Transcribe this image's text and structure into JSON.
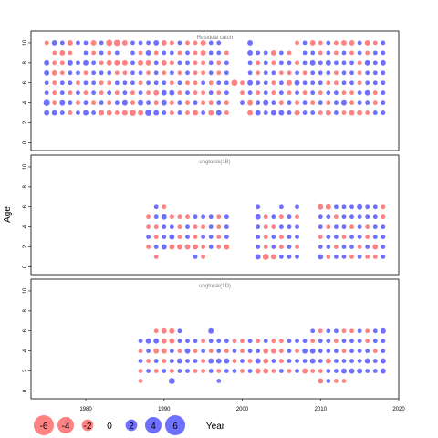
{
  "chart_data": {
    "type": "scatter",
    "subtype": "bubble-residuals",
    "xlabel": "Year",
    "ylabel": "Age",
    "xlim": [
      1973,
      2020
    ],
    "x_ticks": [
      1980,
      1990,
      2000,
      2010,
      2020
    ],
    "colors": {
      "positive": "#3333ff",
      "negative": "#ff4d4d",
      "frame": "#000000",
      "title": "#808080"
    },
    "legend": {
      "placement": "bottom-left",
      "values": [
        -6,
        -4,
        -2,
        0,
        2,
        4,
        6
      ],
      "labels": [
        "-6",
        "-4",
        "-2",
        "0",
        "2",
        "4",
        "6"
      ]
    },
    "panels": [
      {
        "title": "Residual catch",
        "ylim": [
          -0.6,
          11
        ],
        "y_ticks": [
          0,
          2,
          4,
          6,
          8,
          10
        ],
        "y_tick_labels": [
          "0",
          "2",
          "4",
          "6",
          "8",
          "10"
        ],
        "ages": [
          3,
          4,
          5,
          6,
          7,
          8,
          9,
          10
        ],
        "years": [
          1975,
          1976,
          1977,
          1978,
          1979,
          1980,
          1981,
          1982,
          1983,
          1984,
          1985,
          1986,
          1987,
          1988,
          1989,
          1990,
          1991,
          1992,
          1993,
          1994,
          1995,
          1996,
          1997,
          1998,
          1999,
          2000,
          2001,
          2002,
          2003,
          2004,
          2005,
          2006,
          2007,
          2008,
          2009,
          2010,
          2011,
          2012,
          2013,
          2014,
          2015,
          2016,
          2017,
          2018
        ],
        "residuals": [
          [
            3,
            3,
            2,
            -2,
            2,
            3,
            2,
            -3,
            -3,
            -2,
            -3,
            -4,
            -3,
            4,
            3,
            2,
            -2,
            2,
            -2,
            -3,
            2,
            -3,
            3,
            -2,
            0,
            0,
            -3,
            3,
            2,
            3,
            3,
            2,
            -3,
            2,
            2,
            -2,
            -3,
            2,
            -2,
            -3,
            -3,
            -2,
            2,
            2
          ],
          [
            4,
            -2,
            3,
            2,
            -2,
            2,
            -2,
            2,
            -2,
            2,
            3,
            -2,
            3,
            2,
            -2,
            3,
            -2,
            2,
            -2,
            2,
            -2,
            -2,
            2,
            -2,
            0,
            2,
            -3,
            2,
            3,
            2,
            -2,
            2,
            -2,
            2,
            -2,
            2,
            -2,
            2,
            3,
            -2,
            2,
            2,
            -2,
            2
          ],
          [
            2,
            -2,
            2,
            -2,
            2,
            -2,
            2,
            -2,
            2,
            -2,
            2,
            -2,
            2,
            -2,
            -3,
            3,
            3,
            -2,
            2,
            -2,
            -2,
            2,
            -2,
            2,
            0,
            -2,
            2,
            -2,
            2,
            -2,
            2,
            -2,
            2,
            -2,
            2,
            -2,
            2,
            2,
            -2,
            -2,
            2,
            3,
            -2,
            2
          ],
          [
            2,
            -2,
            2,
            2,
            -2,
            2,
            2,
            -2,
            -2,
            2,
            2,
            2,
            -2,
            2,
            2,
            2,
            -2,
            2,
            -2,
            -2,
            2,
            -2,
            2,
            2,
            -4,
            -2,
            3,
            2,
            2,
            -2,
            2,
            -3,
            3,
            2,
            2,
            2,
            -2,
            -2,
            2,
            2,
            -2,
            2,
            2,
            2
          ],
          [
            3,
            -3,
            -2,
            2,
            2,
            -2,
            2,
            2,
            2,
            -2,
            -2,
            2,
            2,
            -2,
            2,
            -2,
            2,
            -2,
            2,
            -2,
            -2,
            2,
            -2,
            2,
            0,
            0,
            2,
            -2,
            2,
            2,
            -2,
            -2,
            2,
            -2,
            2,
            2,
            2,
            -2,
            2,
            2,
            -2,
            2,
            2,
            2
          ],
          [
            3,
            -2,
            -2,
            3,
            2,
            3,
            2,
            -2,
            -3,
            -3,
            -3,
            2,
            -3,
            -3,
            2,
            -3,
            -2,
            2,
            2,
            -2,
            -2,
            2,
            -2,
            2,
            0,
            0,
            2,
            -2,
            2,
            -2,
            2,
            2,
            -2,
            2,
            3,
            2,
            3,
            2,
            2,
            2,
            -2,
            3,
            2,
            3
          ],
          [
            0,
            -2,
            -3,
            -2,
            0,
            2,
            -2,
            2,
            -2,
            2,
            0,
            2,
            -2,
            3,
            -2,
            2,
            2,
            -2,
            2,
            -2,
            -3,
            2,
            2,
            -2,
            0,
            0,
            3,
            2,
            2,
            -3,
            2,
            -2,
            0,
            2,
            2,
            -2,
            2,
            -2,
            2,
            -2,
            2,
            -2,
            2,
            2
          ],
          [
            -2,
            3,
            2,
            -3,
            2,
            2,
            -3,
            2,
            -4,
            -4,
            -3,
            2,
            2,
            2,
            3,
            -3,
            -2,
            2,
            -2,
            -2,
            -3,
            2,
            2,
            0,
            0,
            0,
            3,
            0,
            0,
            0,
            0,
            0,
            -2,
            2,
            -3,
            -2,
            2,
            -2,
            -3,
            -3,
            2,
            -3,
            -2,
            2
          ]
        ]
      },
      {
        "title": "ungtorsk(1B)",
        "ylim": [
          -0.6,
          11
        ],
        "y_ticks": [
          0,
          2,
          4,
          6,
          8,
          10
        ],
        "y_tick_labels": [
          "0",
          "2",
          "4",
          "6",
          "8",
          "10"
        ],
        "ages": [
          1,
          2,
          3,
          4,
          5,
          6
        ],
        "years": [
          1988,
          1989,
          1990,
          1991,
          1992,
          1993,
          1994,
          1995,
          1996,
          1997,
          1998,
          2002,
          2003,
          2004,
          2005,
          2006,
          2007,
          2010,
          2011,
          2012,
          2013,
          2014,
          2015,
          2016,
          2017,
          2018
        ],
        "residuals": [
          [
            0,
            -2,
            0,
            0,
            0,
            0,
            2,
            -2,
            0,
            0,
            0,
            3,
            -4,
            -3,
            2,
            2,
            2,
            3,
            -2,
            2,
            2,
            -2,
            2,
            -2,
            -2,
            2
          ],
          [
            -2,
            2,
            3,
            -3,
            -3,
            -3,
            -3,
            -2,
            2,
            -2,
            -3,
            2,
            -2,
            2,
            -2,
            2,
            -2,
            2,
            2,
            -2,
            2,
            2,
            -2,
            2,
            -3,
            2
          ],
          [
            2,
            -2,
            2,
            3,
            -2,
            2,
            -2,
            2,
            2,
            -2,
            2,
            2,
            -2,
            2,
            -2,
            2,
            2,
            -2,
            2,
            2,
            -2,
            2,
            2,
            -2,
            2,
            2
          ],
          [
            -2,
            -2,
            2,
            2,
            -2,
            2,
            -2,
            -2,
            2,
            -2,
            2,
            2,
            -2,
            -2,
            2,
            2,
            2,
            2,
            -2,
            2,
            2,
            -2,
            2,
            -2,
            2,
            2
          ],
          [
            -2,
            2,
            3,
            -2,
            -2,
            -2,
            2,
            2,
            2,
            -2,
            2,
            3,
            -2,
            2,
            -2,
            2,
            -2,
            2,
            2,
            -2,
            2,
            2,
            2,
            2,
            2,
            -2
          ],
          [
            0,
            2,
            -2,
            0,
            0,
            0,
            0,
            0,
            0,
            0,
            0,
            2,
            0,
            0,
            2,
            0,
            2,
            -3,
            -3,
            2,
            2,
            2,
            3,
            2,
            2,
            -2
          ]
        ]
      },
      {
        "title": "ungtorsk(1D)",
        "ylim": [
          -0.6,
          11
        ],
        "y_ticks": [
          0,
          2,
          4,
          6,
          8,
          10
        ],
        "y_tick_labels": [
          "0",
          "2",
          "4",
          "6",
          "8",
          "10"
        ],
        "ages": [
          1,
          2,
          3,
          4,
          5,
          6
        ],
        "years": [
          1987,
          1988,
          1989,
          1990,
          1991,
          1992,
          1993,
          1994,
          1995,
          1996,
          1997,
          1998,
          1999,
          2000,
          2001,
          2002,
          2003,
          2004,
          2005,
          2006,
          2007,
          2008,
          2009,
          2010,
          2011,
          2012,
          2013,
          2014,
          2015,
          2016,
          2017,
          2018
        ],
        "residuals": [
          [
            -2,
            0,
            0,
            0,
            4,
            0,
            0,
            0,
            0,
            0,
            2,
            0,
            0,
            0,
            0,
            0,
            0,
            0,
            0,
            0,
            0,
            0,
            0,
            -3,
            2,
            -2,
            -2,
            0,
            0,
            0,
            0,
            0
          ],
          [
            -2,
            2,
            -2,
            2,
            -2,
            2,
            2,
            -2,
            -2,
            2,
            -2,
            2,
            2,
            -2,
            2,
            -3,
            -3,
            -2,
            2,
            -2,
            2,
            -3,
            -2,
            -2,
            2,
            2,
            3,
            3,
            3,
            2,
            2,
            3
          ],
          [
            2,
            -2,
            2,
            -2,
            2,
            3,
            2,
            2,
            -2,
            3,
            3,
            3,
            -2,
            2,
            -2,
            3,
            -3,
            2,
            -2,
            2,
            2,
            2,
            3,
            2,
            -3,
            2,
            2,
            2,
            2,
            3,
            2,
            3
          ],
          [
            -2,
            2,
            -3,
            -3,
            2,
            -2,
            3,
            -2,
            2,
            -2,
            2,
            -2,
            2,
            -2,
            2,
            2,
            -3,
            -3,
            -2,
            2,
            -2,
            3,
            3,
            2,
            2,
            2,
            -2,
            2,
            2,
            2,
            -2,
            2
          ],
          [
            2,
            3,
            3,
            -3,
            -3,
            2,
            2,
            2,
            -2,
            2,
            2,
            2,
            -2,
            -2,
            2,
            -2,
            2,
            -2,
            -2,
            2,
            2,
            2,
            -2,
            2,
            2,
            -2,
            2,
            2,
            2,
            -2,
            2,
            2
          ],
          [
            0,
            0,
            -2,
            -3,
            -3,
            2,
            0,
            0,
            0,
            3,
            0,
            0,
            0,
            0,
            0,
            0,
            0,
            0,
            0,
            0,
            0,
            0,
            2,
            -2,
            2,
            2,
            -2,
            -2,
            2,
            -2,
            2,
            3
          ]
        ]
      }
    ]
  }
}
